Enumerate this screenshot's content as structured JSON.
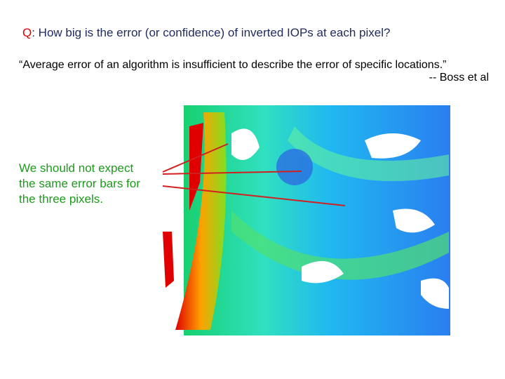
{
  "question": {
    "prefix": "Q",
    "text": ": How big is the error (or confidence) of inverted IOPs at each pixel?"
  },
  "quote": {
    "text": "“Average error of an algorithm is insufficient to describe the error of specific locations.”",
    "attribution": "-- Boss et al"
  },
  "note": {
    "lines": [
      "We should not expect",
      "the same error bars for",
      "the three pixels."
    ]
  }
}
